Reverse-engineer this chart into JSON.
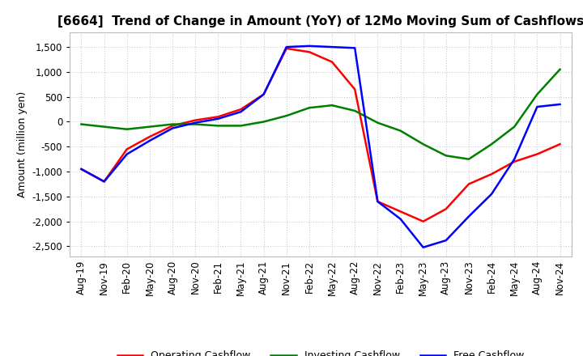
{
  "title": "[6664]  Trend of Change in Amount (YoY) of 12Mo Moving Sum of Cashflows",
  "ylabel": "Amount (million yen)",
  "background_color": "#ffffff",
  "grid_color": "#cccccc",
  "legend": [
    "Operating Cashflow",
    "Investing Cashflow",
    "Free Cashflow"
  ],
  "legend_colors": [
    "#ff0000",
    "#008000",
    "#0000ff"
  ],
  "x_labels": [
    "Aug-19",
    "Nov-19",
    "Feb-20",
    "May-20",
    "Aug-20",
    "Nov-20",
    "Feb-21",
    "May-21",
    "Aug-21",
    "Nov-21",
    "Feb-22",
    "May-22",
    "Aug-22",
    "Nov-22",
    "Feb-23",
    "May-23",
    "Aug-23",
    "Nov-23",
    "Feb-24",
    "May-24",
    "Aug-24",
    "Nov-24"
  ],
  "operating": [
    -950,
    -1200,
    -550,
    -300,
    -80,
    30,
    100,
    250,
    550,
    1470,
    1400,
    1200,
    650,
    -1600,
    -1800,
    -2000,
    -1750,
    -1250,
    -1050,
    -800,
    -650,
    -450
  ],
  "investing": [
    -50,
    -100,
    -150,
    -100,
    -50,
    -50,
    -80,
    -80,
    0,
    120,
    280,
    330,
    220,
    -20,
    -180,
    -450,
    -680,
    -750,
    -450,
    -100,
    550,
    1050
  ],
  "free": [
    -950,
    -1200,
    -650,
    -380,
    -130,
    -20,
    60,
    200,
    550,
    1500,
    1520,
    1500,
    1480,
    -1600,
    -1950,
    -2520,
    -2380,
    -1900,
    -1450,
    -750,
    300,
    350
  ],
  "ylim": [
    -2700,
    1800
  ],
  "yticks": [
    -2500,
    -2000,
    -1500,
    -1000,
    -500,
    0,
    500,
    1000,
    1500
  ],
  "title_fontsize": 11,
  "axis_fontsize": 9,
  "tick_fontsize": 8.5,
  "legend_fontsize": 9,
  "linewidth": 1.8
}
